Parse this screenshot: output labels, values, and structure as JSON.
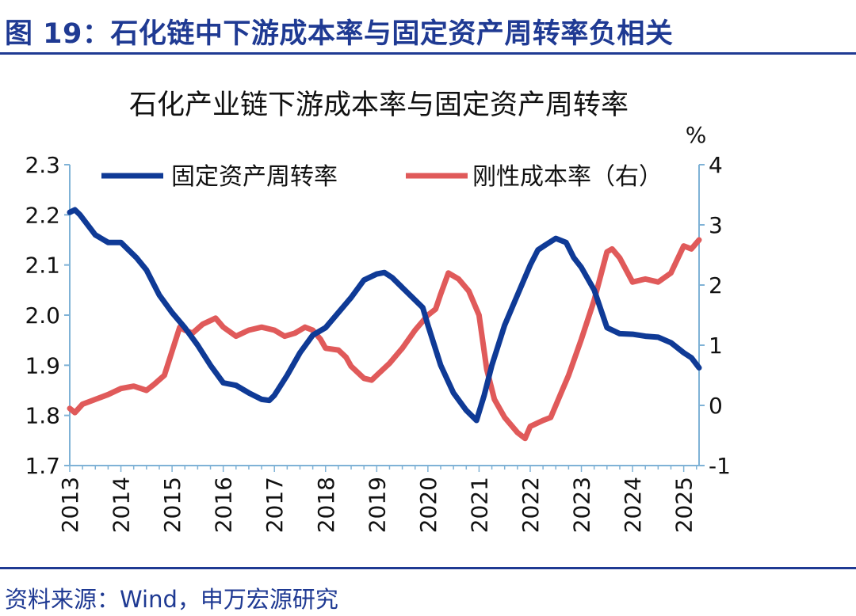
{
  "figure": {
    "title": "图 19：石化链中下游成本率与固定资产周转率负相关",
    "source": "资料来源：Wind，申万宏源研究"
  },
  "colors": {
    "brand": "#1f3a93",
    "series_blue": "#0f3a96",
    "series_red": "#e05a5a",
    "axis": "#7fb2d6"
  },
  "chart_data": {
    "type": "line",
    "title": "石化产业链下游成本率与固定资产周转率",
    "right_axis_unit": "%",
    "legend_position": "top",
    "grid": false,
    "x_ticks": [
      "2013",
      "2014",
      "2015",
      "2016",
      "2017",
      "2018",
      "2019",
      "2020",
      "2021",
      "2022",
      "2023",
      "2024",
      "2025"
    ],
    "xlim": [
      2013.0,
      2025.3
    ],
    "y_left": {
      "ticks": [
        "1.7",
        "1.8",
        "1.9",
        "2.0",
        "2.1",
        "2.2",
        "2.3"
      ],
      "lim": [
        1.7,
        2.3
      ]
    },
    "y_right": {
      "ticks": [
        "-1",
        "0",
        "1",
        "2",
        "3",
        "4"
      ],
      "lim": [
        -1,
        4
      ]
    },
    "series": [
      {
        "name": "固定资产周转率",
        "axis": "left",
        "color": "#0f3a96",
        "x": [
          2013.0,
          2013.1,
          2013.2,
          2013.35,
          2013.5,
          2013.75,
          2014.0,
          2014.15,
          2014.3,
          2014.5,
          2014.75,
          2015.0,
          2015.25,
          2015.5,
          2015.75,
          2016.0,
          2016.25,
          2016.5,
          2016.75,
          2016.9,
          2017.0,
          2017.25,
          2017.5,
          2017.75,
          2018.0,
          2018.25,
          2018.5,
          2018.75,
          2019.0,
          2019.15,
          2019.3,
          2019.5,
          2019.75,
          2019.9,
          2020.0,
          2020.25,
          2020.5,
          2020.75,
          2020.95,
          2021.1,
          2021.25,
          2021.5,
          2021.75,
          2022.0,
          2022.15,
          2022.3,
          2022.5,
          2022.7,
          2022.85,
          2023.0,
          2023.25,
          2023.5,
          2023.75,
          2024.0,
          2024.25,
          2024.5,
          2024.75,
          2025.0,
          2025.15,
          2025.3
        ],
        "values": [
          2.205,
          2.21,
          2.2,
          2.18,
          2.16,
          2.145,
          2.145,
          2.13,
          2.115,
          2.09,
          2.04,
          2.005,
          1.975,
          1.94,
          1.9,
          1.865,
          1.86,
          1.845,
          1.832,
          1.83,
          1.84,
          1.88,
          1.925,
          1.96,
          1.975,
          2.005,
          2.035,
          2.07,
          2.082,
          2.085,
          2.075,
          2.055,
          2.03,
          2.015,
          1.98,
          1.9,
          1.845,
          1.81,
          1.79,
          1.84,
          1.9,
          1.98,
          2.04,
          2.1,
          2.13,
          2.14,
          2.153,
          2.145,
          2.115,
          2.095,
          2.05,
          1.975,
          1.963,
          1.962,
          1.958,
          1.956,
          1.945,
          1.925,
          1.915,
          1.895
        ]
      },
      {
        "name": "刚性成本率（右）",
        "axis": "right",
        "color": "#e05a5a",
        "x": [
          2013.0,
          2013.1,
          2013.25,
          2013.5,
          2013.75,
          2014.0,
          2014.25,
          2014.5,
          2014.65,
          2014.85,
          2015.0,
          2015.15,
          2015.25,
          2015.4,
          2015.6,
          2015.85,
          2016.0,
          2016.25,
          2016.5,
          2016.75,
          2017.0,
          2017.2,
          2017.4,
          2017.6,
          2017.75,
          2017.9,
          2018.0,
          2018.25,
          2018.4,
          2018.5,
          2018.75,
          2018.9,
          2019.0,
          2019.25,
          2019.5,
          2019.75,
          2020.0,
          2020.15,
          2020.25,
          2020.4,
          2020.6,
          2020.8,
          2021.0,
          2021.15,
          2021.3,
          2021.5,
          2021.75,
          2021.9,
          2022.0,
          2022.25,
          2022.4,
          2022.6,
          2022.75,
          2023.0,
          2023.25,
          2023.5,
          2023.6,
          2023.75,
          2024.0,
          2024.25,
          2024.5,
          2024.75,
          2025.0,
          2025.15,
          2025.3
        ],
        "values": [
          -0.05,
          -0.12,
          0.02,
          0.1,
          0.18,
          0.28,
          0.32,
          0.25,
          0.35,
          0.5,
          0.9,
          1.3,
          1.25,
          1.2,
          1.35,
          1.45,
          1.3,
          1.15,
          1.25,
          1.3,
          1.25,
          1.15,
          1.2,
          1.3,
          1.25,
          1.1,
          0.95,
          0.92,
          0.8,
          0.65,
          0.45,
          0.42,
          0.5,
          0.7,
          0.95,
          1.25,
          1.5,
          1.6,
          1.85,
          2.2,
          2.1,
          1.9,
          1.5,
          0.6,
          0.1,
          -0.2,
          -0.45,
          -0.55,
          -0.35,
          -0.25,
          -0.2,
          0.2,
          0.5,
          1.1,
          1.75,
          2.55,
          2.6,
          2.45,
          2.05,
          2.1,
          2.05,
          2.2,
          2.65,
          2.6,
          2.75
        ]
      }
    ]
  }
}
